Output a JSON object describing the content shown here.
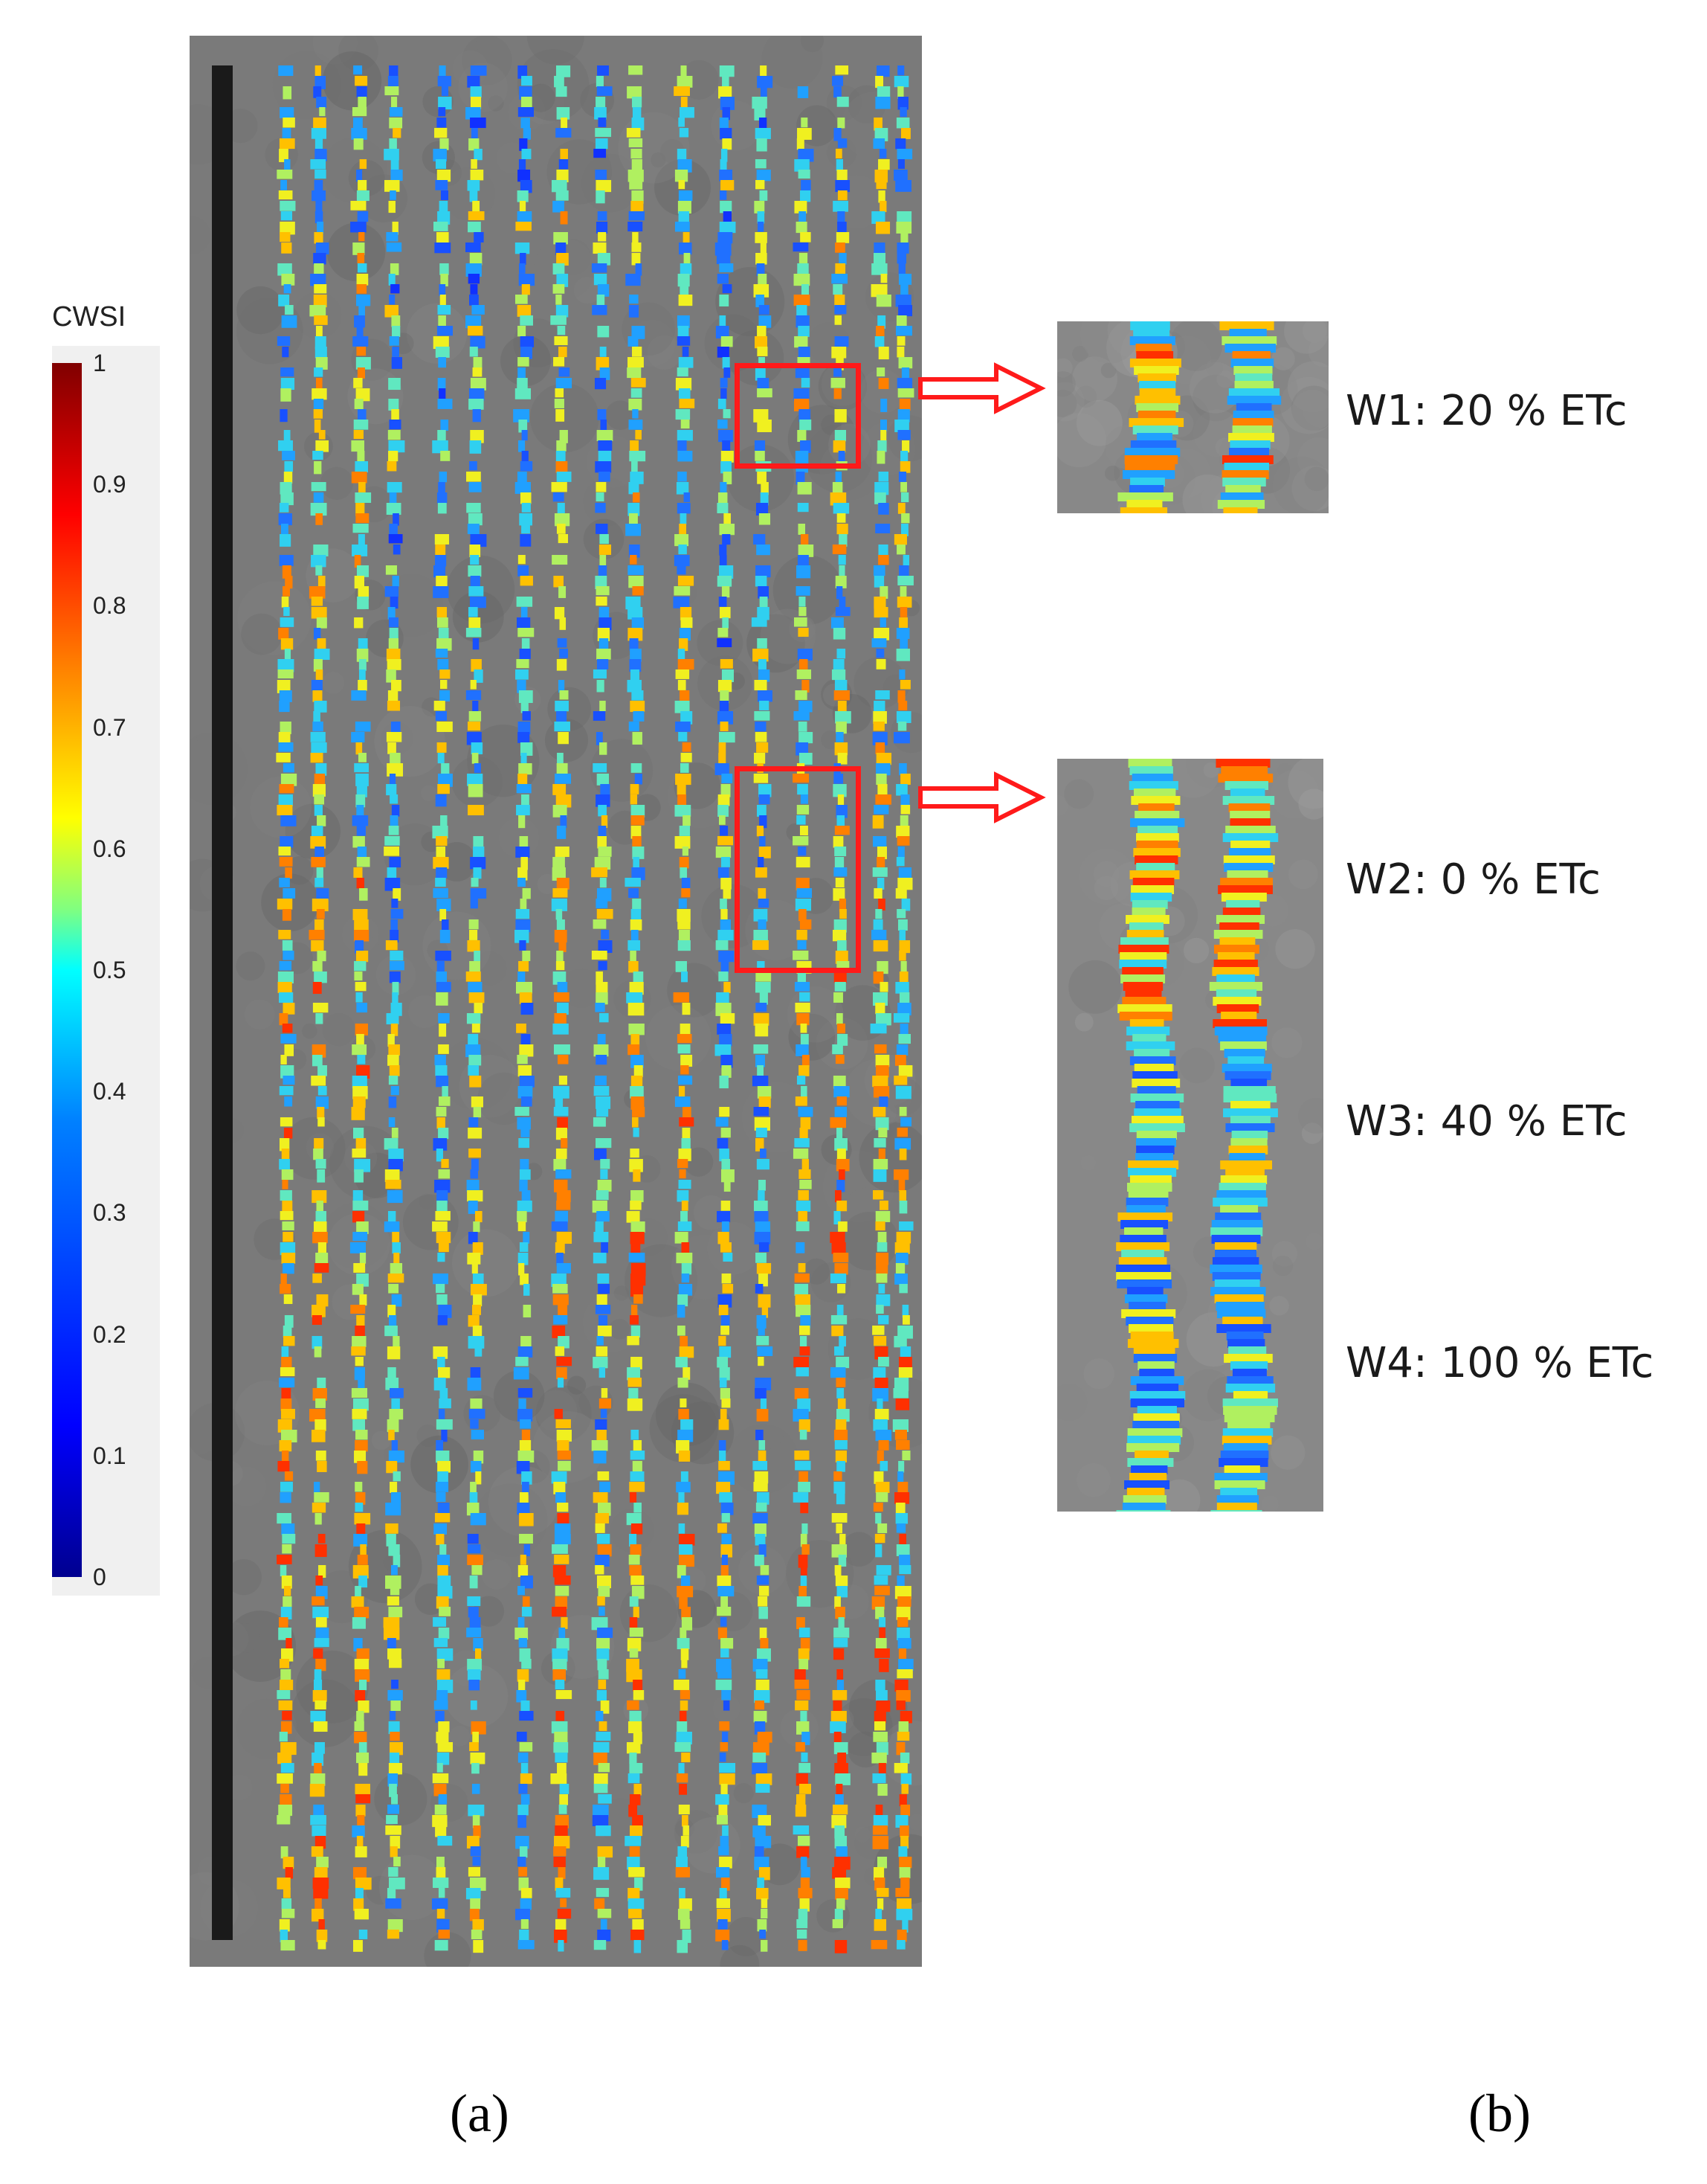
{
  "colorbar": {
    "title": "CWSI",
    "ticks": [
      "1",
      "0.9",
      "0.8",
      "0.7",
      "0.6",
      "0.5",
      "0.4",
      "0.3",
      "0.2",
      "0.1",
      "0"
    ]
  },
  "treatments": {
    "w1": "W1: 20 % ETc",
    "w2": "W2: 0 % ETc",
    "w3": "W3: 40 % ETc",
    "w4": "W4: 100 % ETc"
  },
  "panels": {
    "a": "(a)",
    "b": "(b)"
  },
  "colors": {
    "highlight": "#ff1a1a",
    "soil": "#7a7a7a"
  }
}
